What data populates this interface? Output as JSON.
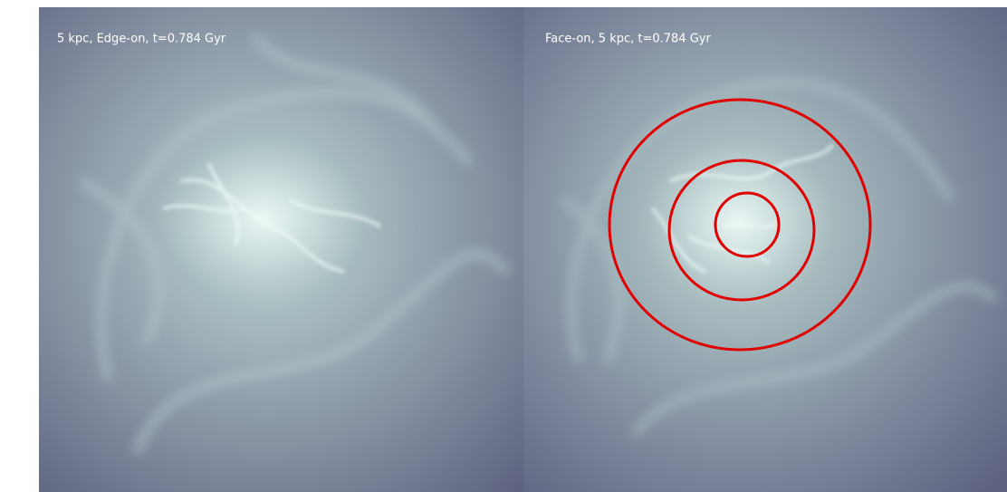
{
  "panels": [
    {
      "label": "5 kpc, Edge-on, t=0.784 Gyr"
    },
    {
      "label": "Face-on, 5 kpc, t=0.784 Gyr"
    }
  ]
}
